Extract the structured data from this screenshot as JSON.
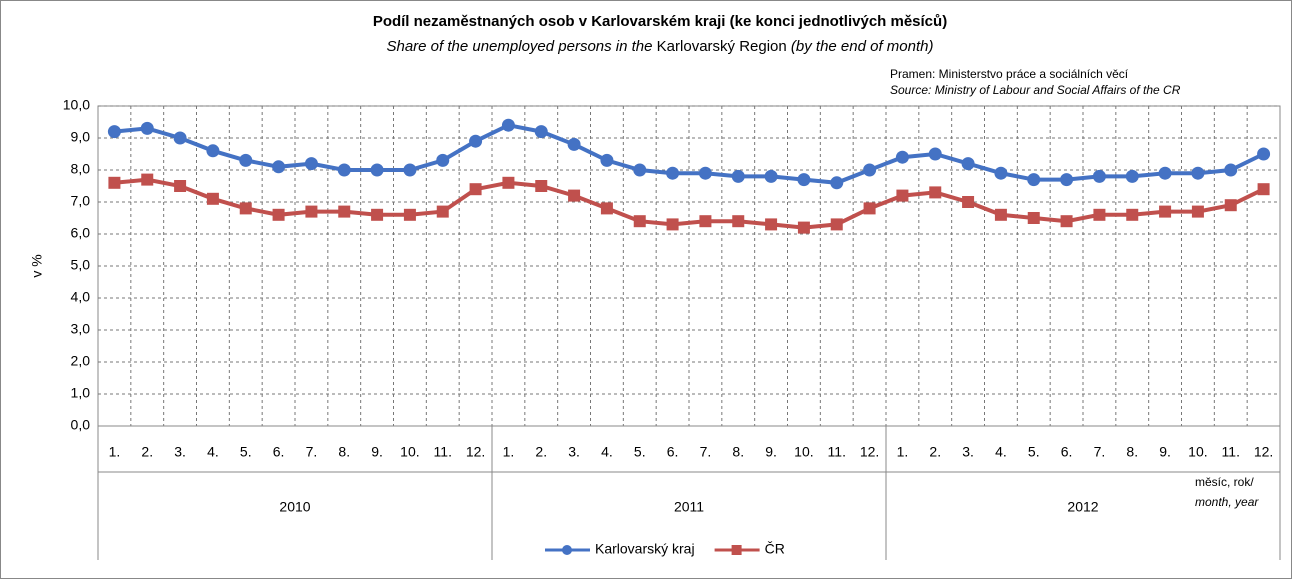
{
  "chart_data": {
    "type": "line",
    "title": "Podíl nezaměstnaných osob v Karlovarském kraji (ke konci jednotlivých měsíců)",
    "subtitle": [
      "Share of the unemployed persons in the",
      "Karlovarský Region",
      "(by the end of month)"
    ],
    "source": [
      "Pramen: Ministerstvo práce a sociálních věcí",
      "Source: Ministry of Labour and Social Affairs of the CR"
    ],
    "y_label": "v %",
    "x_label": [
      "měsíc, rok/",
      "month, year"
    ],
    "categories": [
      "1.",
      "2.",
      "3.",
      "4.",
      "5.",
      "6.",
      "7.",
      "8.",
      "9.",
      "10.",
      "11.",
      "12.",
      "1.",
      "2.",
      "3.",
      "4.",
      "5.",
      "6.",
      "7.",
      "8.",
      "9.",
      "10.",
      "11.",
      "12.",
      "1.",
      "2.",
      "3.",
      "4.",
      "5.",
      "6.",
      "7.",
      "8.",
      "9.",
      "10.",
      "11.",
      "12."
    ],
    "groups": [
      "2010",
      "2011",
      "2012"
    ],
    "ylim": [
      0,
      10
    ],
    "yticks": [
      {
        "value": 0,
        "label": "0,0"
      },
      {
        "value": 1,
        "label": "1,0"
      },
      {
        "value": 2,
        "label": "2,0"
      },
      {
        "value": 3,
        "label": "3,0"
      },
      {
        "value": 4,
        "label": "4,0"
      },
      {
        "value": 5,
        "label": "5,0"
      },
      {
        "value": 6,
        "label": "6,0"
      },
      {
        "value": 7,
        "label": "7,0"
      },
      {
        "value": 8,
        "label": "8,0"
      },
      {
        "value": 9,
        "label": "9,0"
      },
      {
        "value": 10,
        "label": "10,0"
      }
    ],
    "grid": true,
    "series": [
      {
        "name": "Karlovarský kraj",
        "color": "#4472c4",
        "marker": "circle",
        "values": [
          9.2,
          9.3,
          9.0,
          8.6,
          8.3,
          8.1,
          8.2,
          8.0,
          8.0,
          8.0,
          8.3,
          8.9,
          9.4,
          9.2,
          8.8,
          8.3,
          8.0,
          7.9,
          7.9,
          7.8,
          7.8,
          7.7,
          7.6,
          8.0,
          8.4,
          8.5,
          8.2,
          7.9,
          7.7,
          7.7,
          7.8,
          7.8,
          7.9,
          7.9,
          8.0,
          8.5
        ]
      },
      {
        "name": "ČR",
        "color": "#c0504d",
        "marker": "square",
        "values": [
          7.6,
          7.7,
          7.5,
          7.1,
          6.8,
          6.6,
          6.7,
          6.7,
          6.6,
          6.6,
          6.7,
          7.4,
          7.6,
          7.5,
          7.2,
          6.8,
          6.4,
          6.3,
          6.4,
          6.4,
          6.3,
          6.2,
          6.3,
          6.8,
          7.2,
          7.3,
          7.0,
          6.6,
          6.5,
          6.4,
          6.6,
          6.6,
          6.7,
          6.7,
          6.9,
          7.4
        ]
      }
    ]
  }
}
